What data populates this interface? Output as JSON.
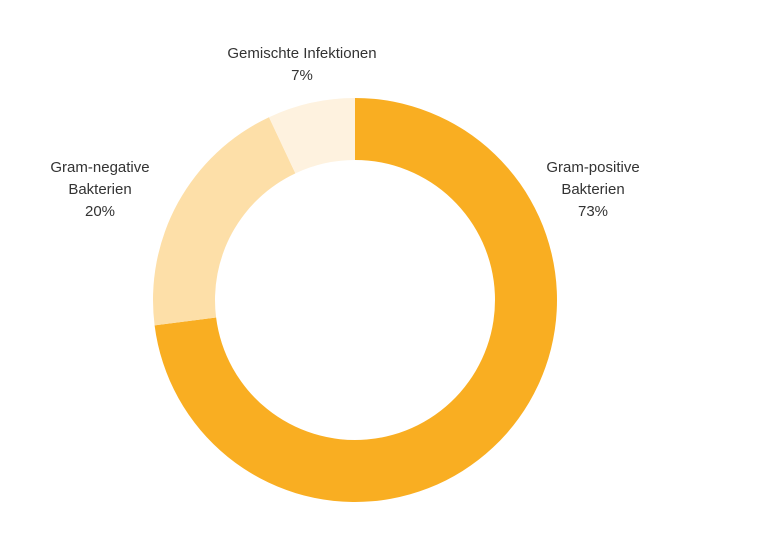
{
  "chart_data": {
    "type": "pie",
    "donut": true,
    "title": "",
    "slices": [
      {
        "name_lines": [
          "Gram-positive",
          "Bakterien"
        ],
        "value": 73,
        "label": "73%",
        "color": "#F9AE22"
      },
      {
        "name_lines": [
          "Gram-negative",
          "Bakterien"
        ],
        "value": 20,
        "label": "20%",
        "color": "#FDDFA8"
      },
      {
        "name_lines": [
          "Gemischte Infektionen"
        ],
        "value": 7,
        "label": "7%",
        "color": "#FEF2DF"
      }
    ],
    "start_angle": "12 o'clock",
    "direction": "clockwise",
    "legend": "none"
  }
}
